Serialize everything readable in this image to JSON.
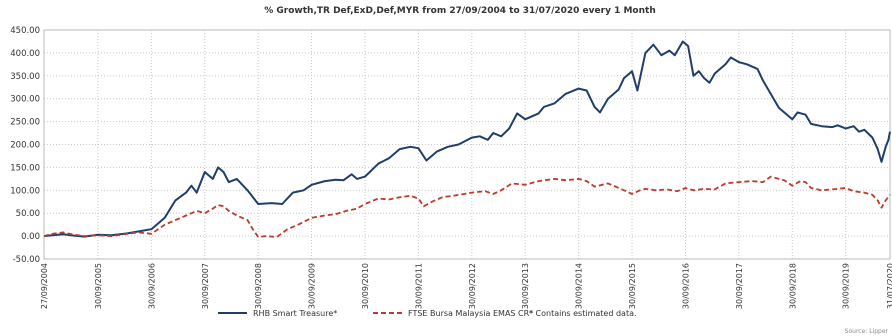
{
  "chart_data": {
    "type": "line",
    "title": "% Growth,TR Def,ExD,Def,MYR from 27/09/2004 to 31/07/2020 every 1 Month",
    "xlabel": "",
    "ylabel": "",
    "ylim": [
      -50,
      450
    ],
    "yticks": [
      "450.00",
      "400.00",
      "350.00",
      "300.00",
      "250.00",
      "200.00",
      "150.00",
      "100.00",
      "50.00",
      "0.00",
      "-50.00"
    ],
    "x_range": [
      2004.74,
      2020.58
    ],
    "xticks": [
      {
        "x": 2004.74,
        "label": "27/09/2004"
      },
      {
        "x": 2005.75,
        "label": "30/09/2005"
      },
      {
        "x": 2006.75,
        "label": "30/09/2006"
      },
      {
        "x": 2007.75,
        "label": "30/09/2007"
      },
      {
        "x": 2008.75,
        "label": "30/09/2008"
      },
      {
        "x": 2009.75,
        "label": "30/09/2009"
      },
      {
        "x": 2010.75,
        "label": "30/09/2010"
      },
      {
        "x": 2011.75,
        "label": "30/09/2011"
      },
      {
        "x": 2012.75,
        "label": "30/09/2012"
      },
      {
        "x": 2013.75,
        "label": "30/09/2013"
      },
      {
        "x": 2014.75,
        "label": "30/09/2014"
      },
      {
        "x": 2015.75,
        "label": "30/09/2015"
      },
      {
        "x": 2016.75,
        "label": "30/09/2016"
      },
      {
        "x": 2017.75,
        "label": "30/09/2017"
      },
      {
        "x": 2018.75,
        "label": "30/09/2018"
      },
      {
        "x": 2019.75,
        "label": "30/09/2019"
      },
      {
        "x": 2020.58,
        "label": "31/07/2020"
      }
    ],
    "grid": true,
    "legend_position": "bottom",
    "footnote": "* Contains estimated data.",
    "source": "Source: Lipper",
    "series": [
      {
        "name": "RHB Smart Treasure*",
        "color": "#1f3e6b",
        "style": "solid",
        "points": [
          [
            2004.74,
            0
          ],
          [
            2004.9,
            2
          ],
          [
            2005.1,
            4
          ],
          [
            2005.3,
            1
          ],
          [
            2005.5,
            -1
          ],
          [
            2005.75,
            3
          ],
          [
            2006.0,
            2
          ],
          [
            2006.3,
            6
          ],
          [
            2006.5,
            10
          ],
          [
            2006.75,
            15
          ],
          [
            2007.0,
            40
          ],
          [
            2007.2,
            78
          ],
          [
            2007.4,
            95
          ],
          [
            2007.5,
            110
          ],
          [
            2007.6,
            95
          ],
          [
            2007.75,
            140
          ],
          [
            2007.9,
            125
          ],
          [
            2008.0,
            150
          ],
          [
            2008.1,
            140
          ],
          [
            2008.2,
            118
          ],
          [
            2008.35,
            125
          ],
          [
            2008.55,
            100
          ],
          [
            2008.75,
            70
          ],
          [
            2009.0,
            72
          ],
          [
            2009.2,
            70
          ],
          [
            2009.4,
            95
          ],
          [
            2009.6,
            100
          ],
          [
            2009.75,
            112
          ],
          [
            2010.0,
            120
          ],
          [
            2010.2,
            123
          ],
          [
            2010.35,
            122
          ],
          [
            2010.5,
            135
          ],
          [
            2010.6,
            125
          ],
          [
            2010.75,
            130
          ],
          [
            2011.0,
            158
          ],
          [
            2011.2,
            170
          ],
          [
            2011.4,
            190
          ],
          [
            2011.6,
            195
          ],
          [
            2011.75,
            192
          ],
          [
            2011.9,
            165
          ],
          [
            2012.1,
            185
          ],
          [
            2012.3,
            195
          ],
          [
            2012.5,
            200
          ],
          [
            2012.75,
            215
          ],
          [
            2012.9,
            218
          ],
          [
            2013.05,
            210
          ],
          [
            2013.15,
            225
          ],
          [
            2013.3,
            218
          ],
          [
            2013.45,
            235
          ],
          [
            2013.6,
            268
          ],
          [
            2013.75,
            255
          ],
          [
            2014.0,
            268
          ],
          [
            2014.1,
            282
          ],
          [
            2014.3,
            290
          ],
          [
            2014.5,
            310
          ],
          [
            2014.75,
            322
          ],
          [
            2014.9,
            318
          ],
          [
            2015.05,
            282
          ],
          [
            2015.15,
            270
          ],
          [
            2015.3,
            300
          ],
          [
            2015.5,
            320
          ],
          [
            2015.6,
            345
          ],
          [
            2015.75,
            360
          ],
          [
            2015.85,
            318
          ],
          [
            2016.0,
            400
          ],
          [
            2016.15,
            418
          ],
          [
            2016.3,
            395
          ],
          [
            2016.45,
            405
          ],
          [
            2016.55,
            395
          ],
          [
            2016.7,
            425
          ],
          [
            2016.8,
            415
          ],
          [
            2016.9,
            350
          ],
          [
            2017.0,
            360
          ],
          [
            2017.1,
            345
          ],
          [
            2017.2,
            335
          ],
          [
            2017.3,
            355
          ],
          [
            2017.5,
            375
          ],
          [
            2017.6,
            390
          ],
          [
            2017.75,
            380
          ],
          [
            2017.9,
            375
          ],
          [
            2018.1,
            365
          ],
          [
            2018.2,
            340
          ],
          [
            2018.3,
            320
          ],
          [
            2018.4,
            300
          ],
          [
            2018.5,
            280
          ],
          [
            2018.6,
            270
          ],
          [
            2018.75,
            255
          ],
          [
            2018.85,
            270
          ],
          [
            2019.0,
            265
          ],
          [
            2019.1,
            245
          ],
          [
            2019.3,
            240
          ],
          [
            2019.5,
            238
          ],
          [
            2019.6,
            242
          ],
          [
            2019.75,
            235
          ],
          [
            2019.9,
            240
          ],
          [
            2020.0,
            228
          ],
          [
            2020.1,
            232
          ],
          [
            2020.25,
            215
          ],
          [
            2020.35,
            190
          ],
          [
            2020.42,
            162
          ],
          [
            2020.5,
            195
          ],
          [
            2020.55,
            210
          ],
          [
            2020.58,
            228
          ]
        ]
      },
      {
        "name": "FTSE Bursa Malaysia EMAS CR*",
        "color": "#c0392b",
        "style": "dashed",
        "points": [
          [
            2004.74,
            0
          ],
          [
            2004.9,
            5
          ],
          [
            2005.1,
            8
          ],
          [
            2005.3,
            3
          ],
          [
            2005.5,
            0
          ],
          [
            2005.75,
            2
          ],
          [
            2006.0,
            0
          ],
          [
            2006.3,
            5
          ],
          [
            2006.5,
            8
          ],
          [
            2006.75,
            5
          ],
          [
            2007.0,
            25
          ],
          [
            2007.2,
            35
          ],
          [
            2007.4,
            45
          ],
          [
            2007.6,
            55
          ],
          [
            2007.75,
            50
          ],
          [
            2007.9,
            60
          ],
          [
            2008.0,
            68
          ],
          [
            2008.1,
            65
          ],
          [
            2008.2,
            55
          ],
          [
            2008.35,
            45
          ],
          [
            2008.55,
            35
          ],
          [
            2008.65,
            15
          ],
          [
            2008.75,
            -2
          ],
          [
            2008.9,
            0
          ],
          [
            2009.1,
            -2
          ],
          [
            2009.3,
            15
          ],
          [
            2009.5,
            25
          ],
          [
            2009.75,
            40
          ],
          [
            2010.0,
            45
          ],
          [
            2010.2,
            48
          ],
          [
            2010.4,
            55
          ],
          [
            2010.6,
            60
          ],
          [
            2010.75,
            70
          ],
          [
            2011.0,
            82
          ],
          [
            2011.2,
            80
          ],
          [
            2011.4,
            85
          ],
          [
            2011.6,
            88
          ],
          [
            2011.75,
            82
          ],
          [
            2011.85,
            65
          ],
          [
            2012.0,
            75
          ],
          [
            2012.2,
            85
          ],
          [
            2012.4,
            88
          ],
          [
            2012.6,
            92
          ],
          [
            2012.75,
            95
          ],
          [
            2013.0,
            98
          ],
          [
            2013.15,
            92
          ],
          [
            2013.3,
            100
          ],
          [
            2013.5,
            115
          ],
          [
            2013.75,
            112
          ],
          [
            2014.0,
            120
          ],
          [
            2014.3,
            125
          ],
          [
            2014.5,
            122
          ],
          [
            2014.75,
            125
          ],
          [
            2014.9,
            120
          ],
          [
            2015.05,
            108
          ],
          [
            2015.3,
            115
          ],
          [
            2015.5,
            105
          ],
          [
            2015.6,
            100
          ],
          [
            2015.75,
            92
          ],
          [
            2015.9,
            100
          ],
          [
            2016.0,
            103
          ],
          [
            2016.2,
            100
          ],
          [
            2016.4,
            102
          ],
          [
            2016.6,
            98
          ],
          [
            2016.75,
            105
          ],
          [
            2016.9,
            100
          ],
          [
            2017.1,
            103
          ],
          [
            2017.3,
            102
          ],
          [
            2017.5,
            115
          ],
          [
            2017.75,
            118
          ],
          [
            2018.0,
            120
          ],
          [
            2018.2,
            118
          ],
          [
            2018.35,
            130
          ],
          [
            2018.5,
            125
          ],
          [
            2018.6,
            122
          ],
          [
            2018.75,
            110
          ],
          [
            2018.9,
            120
          ],
          [
            2019.0,
            118
          ],
          [
            2019.1,
            105
          ],
          [
            2019.3,
            100
          ],
          [
            2019.5,
            102
          ],
          [
            2019.75,
            105
          ],
          [
            2019.9,
            98
          ],
          [
            2020.1,
            95
          ],
          [
            2020.25,
            90
          ],
          [
            2020.35,
            78
          ],
          [
            2020.42,
            62
          ],
          [
            2020.5,
            78
          ],
          [
            2020.58,
            90
          ]
        ]
      }
    ]
  }
}
